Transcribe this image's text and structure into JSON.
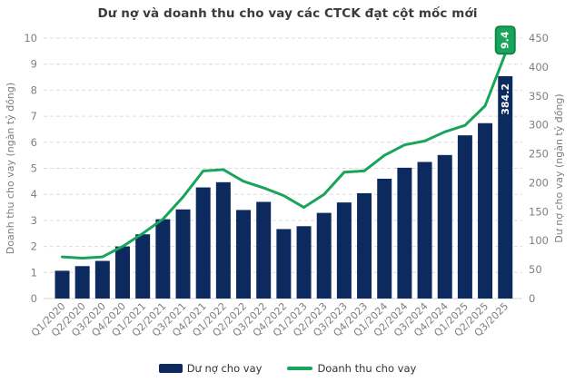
{
  "colors": {
    "bar": "#0c2a5e",
    "line": "#18a45a",
    "line_label_border": "#0e8747",
    "grid": "#dcdcdc",
    "axis_line": "#d5d5d5",
    "tick_text": "#7f7f7f",
    "title_text": "#3b3b3b"
  },
  "chart_data": {
    "type": "combo",
    "title": "Dư nợ và doanh thu cho vay các CTCK đạt cột mốc mới",
    "categories": [
      "Q1/2020",
      "Q2/2020",
      "Q3/2020",
      "Q4/2020",
      "Q1/2021",
      "Q2/2021",
      "Q3/2021",
      "Q4/2021",
      "Q1/2022",
      "Q2/2022",
      "Q3/2022",
      "Q4/2022",
      "Q1/2023",
      "Q2/2023",
      "Q3/2023",
      "Q4/2023",
      "Q1/2024",
      "Q2/2024",
      "Q3/2024",
      "Q4/2024",
      "Q1/2025",
      "Q2/2025",
      "Q3/2025"
    ],
    "series": [
      {
        "name": "Dư nợ cho vay",
        "type": "bar",
        "axis": "right",
        "values": [
          48,
          56,
          65,
          90,
          111,
          137,
          154,
          192,
          201,
          153,
          167,
          120,
          125,
          148,
          166,
          182,
          207,
          226,
          236,
          248,
          282,
          303,
          384.2
        ]
      },
      {
        "name": "Doanh thu cho vay",
        "type": "line",
        "axis": "left",
        "values": [
          1.6,
          1.55,
          1.6,
          2.0,
          2.5,
          3.05,
          3.9,
          4.9,
          4.95,
          4.5,
          4.25,
          3.95,
          3.5,
          4.0,
          4.85,
          4.9,
          5.5,
          5.9,
          6.05,
          6.4,
          6.65,
          7.4,
          9.4
        ]
      }
    ],
    "axes": {
      "left": {
        "label": "Doanh thu cho vay (ngàn tỷ đồng)",
        "min": 0,
        "max": 10,
        "step": 1
      },
      "right": {
        "label": "Dư nợ cho vay (ngàn tỷ đồng)",
        "min": 0,
        "max": 450,
        "step": 50
      }
    },
    "annotations": {
      "last_bar_label": "384.2",
      "last_line_label": "9.4"
    },
    "grid": true,
    "legend_position": "bottom"
  }
}
